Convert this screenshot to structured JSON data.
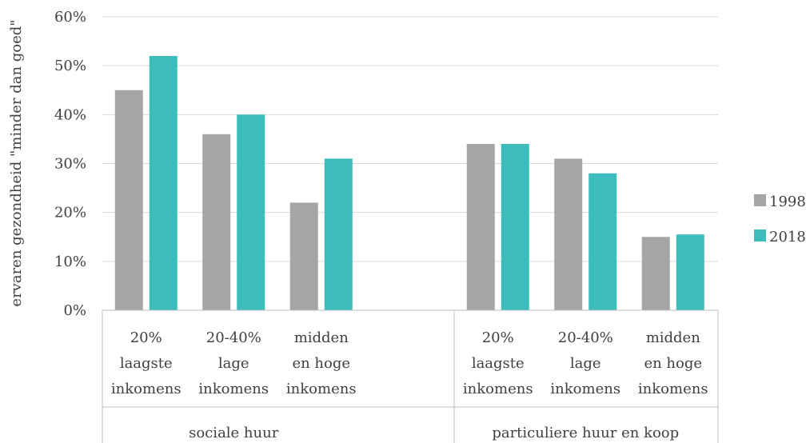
{
  "chart_data": {
    "type": "bar",
    "ylabel": "ervaren gezondheid \"minder dan goed\"",
    "ylim": [
      0,
      60
    ],
    "yticks": [
      "0%",
      "10%",
      "20%",
      "30%",
      "40%",
      "50%",
      "60%"
    ],
    "grid": true,
    "legend_position": "right",
    "groups": [
      {
        "label": "sociale huur",
        "categories": [
          [
            "20%",
            "laagste",
            "inkomens"
          ],
          [
            "20-40%",
            "lage",
            "inkomens"
          ],
          [
            "midden",
            "en hoge",
            "inkomens"
          ]
        ]
      },
      {
        "label": "particuliere huur en koop",
        "categories": [
          [
            "20%",
            "laagste",
            "inkomens"
          ],
          [
            "20-40%",
            "lage",
            "inkomens"
          ],
          [
            "midden",
            "en hoge",
            "inkomens"
          ]
        ]
      }
    ],
    "series": [
      {
        "name": "1998",
        "color": "#a5a5a5",
        "values": [
          45,
          36,
          22,
          34,
          31,
          15
        ]
      },
      {
        "name": "2018",
        "color": "#3cbcbc",
        "values": [
          52,
          40,
          31,
          34,
          28,
          15.5
        ]
      }
    ]
  }
}
